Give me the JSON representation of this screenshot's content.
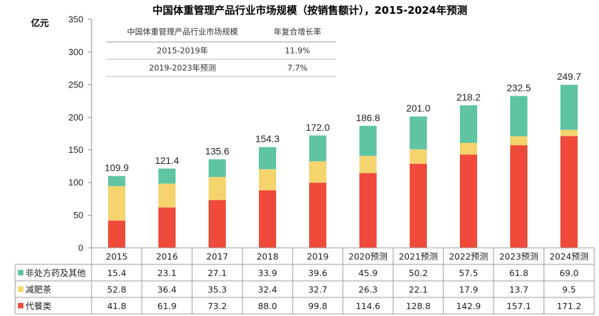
{
  "chart_data": {
    "type": "bar",
    "stacked": true,
    "title": "中国体重管理产品行业市场规模（按销售额计），2015-2024年预测",
    "ylabel": "亿元",
    "ylim": [
      0,
      350
    ],
    "yticks": [
      0,
      50,
      100,
      150,
      200,
      250,
      300,
      350
    ],
    "grid": false,
    "categories": [
      "2015",
      "2016",
      "2017",
      "2018",
      "2019",
      "2020预测",
      "2021预测",
      "2022预测",
      "2023预测",
      "2024预测"
    ],
    "totals": [
      "109.9",
      "121.4",
      "135.6",
      "154.3",
      "172.0",
      "186.8",
      "201.0",
      "218.2",
      "232.5",
      "249.7"
    ],
    "series": [
      {
        "name": "代餐类",
        "color": "#f04a3a",
        "values": [
          41.8,
          61.9,
          73.2,
          88.0,
          99.8,
          114.6,
          128.8,
          142.9,
          157.1,
          171.2
        ],
        "labels": [
          "41.8",
          "61.9",
          "73.2",
          "88.0",
          "99.8",
          "114.6",
          "128.8",
          "142.9",
          "157.1",
          "171.2"
        ]
      },
      {
        "name": "减肥茶",
        "color": "#f5d46e",
        "values": [
          52.8,
          36.4,
          35.3,
          32.4,
          32.7,
          26.3,
          22.1,
          17.9,
          13.7,
          9.5
        ],
        "labels": [
          "52.8",
          "36.4",
          "35.3",
          "32.4",
          "32.7",
          "26.3",
          "22.1",
          "17.9",
          "13.7",
          "9.5"
        ]
      },
      {
        "name": "非处方药及其他",
        "color": "#5ec4a2",
        "values": [
          15.4,
          23.1,
          27.1,
          33.9,
          39.6,
          45.9,
          50.2,
          57.5,
          61.8,
          69.0
        ],
        "labels": [
          "15.4",
          "23.1",
          "27.1",
          "33.9",
          "39.6",
          "45.9",
          "50.2",
          "57.5",
          "61.8",
          "69.0"
        ]
      }
    ],
    "growth_table": {
      "headers": [
        "中国体重管理产品行业市场规模",
        "年复合增长率"
      ],
      "rows": [
        [
          "2015-2019年",
          "11.9%"
        ],
        [
          "2019-2023年预测",
          "7.7%"
        ]
      ]
    }
  }
}
